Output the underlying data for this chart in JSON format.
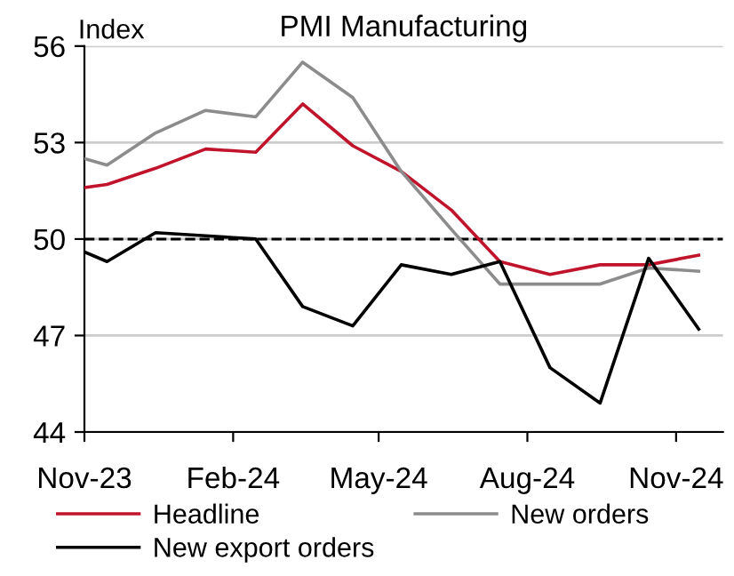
{
  "chart_data": {
    "type": "line",
    "title": "PMI Manufacturing",
    "ylabel": "Index",
    "x": [
      "2023-11-01",
      "2023-11-15",
      "2023-12-15",
      "2024-01-15",
      "2024-02-15",
      "2024-03-15",
      "2024-04-15",
      "2024-05-15",
      "2024-06-15",
      "2024-07-15",
      "2024-08-15",
      "2024-09-15",
      "2024-10-15",
      "2024-11-15"
    ],
    "series": [
      {
        "name": "Headline",
        "color": "#c0142c",
        "values": [
          51.6,
          51.7,
          52.2,
          52.8,
          52.7,
          54.2,
          52.9,
          52.1,
          50.9,
          49.3,
          48.9,
          49.2,
          49.2,
          49.5
        ]
      },
      {
        "name": "New orders",
        "color": "#8c8c8c",
        "values": [
          52.5,
          52.3,
          53.3,
          54.0,
          53.8,
          55.5,
          54.4,
          52.1,
          50.3,
          48.6,
          48.6,
          48.6,
          49.1,
          49.0
        ]
      },
      {
        "name": "New export orders",
        "color": "#000000",
        "values": [
          49.6,
          49.3,
          50.2,
          50.1,
          50.0,
          47.9,
          47.3,
          49.2,
          48.9,
          49.3,
          46.0,
          44.9,
          49.4,
          47.2
        ]
      }
    ],
    "xlim": [
      "2023-11-01",
      "2024-11-30"
    ],
    "xticks": [
      {
        "value": "2023-11-01",
        "label": "Nov-23"
      },
      {
        "value": "2024-02-01",
        "label": "Feb-24"
      },
      {
        "value": "2024-05-01",
        "label": "May-24"
      },
      {
        "value": "2024-08-01",
        "label": "Aug-24"
      },
      {
        "value": "2024-11-01",
        "label": "Nov-24"
      }
    ],
    "ylim": [
      44,
      56
    ],
    "yticks": [
      44,
      47,
      50,
      53,
      56
    ],
    "ref_lines": [
      {
        "axis": "y",
        "value": 50,
        "color": "#000000",
        "line_style": "dashed"
      }
    ],
    "grid": "y",
    "legend": "bottom",
    "marker": "none",
    "line_style": "solid"
  }
}
